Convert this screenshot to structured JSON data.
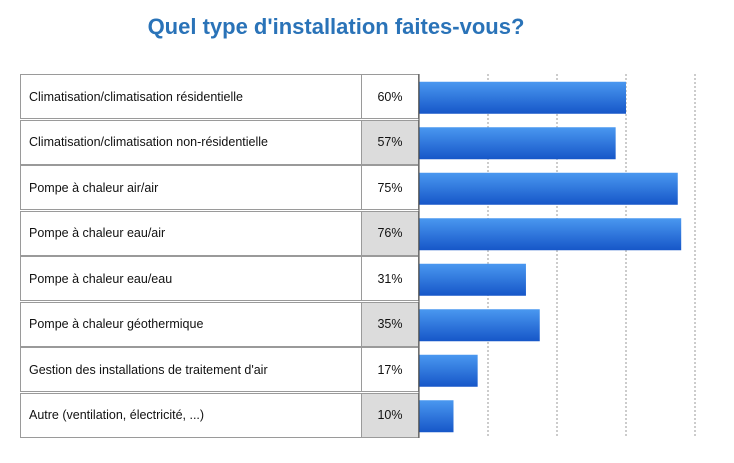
{
  "title": "Quel type d'installation faites-vous?",
  "chart_data": {
    "type": "bar",
    "orientation": "horizontal",
    "title": "Quel type d'installation faites-vous?",
    "categories": [
      "Climatisation/climatisation résidentielle",
      "Climatisation/climatisation non-résidentielle",
      "Pompe à chaleur air/air",
      "Pompe à chaleur eau/air",
      "Pompe à chaleur eau/eau",
      "Pompe à chaleur géothermique",
      "Gestion des installations de traitement d'air",
      "Autre (ventilation, électricité, ...)"
    ],
    "values": [
      60,
      57,
      75,
      76,
      31,
      35,
      17,
      10
    ],
    "value_labels": [
      "60%",
      "57%",
      "75%",
      "76%",
      "31%",
      "35%",
      "17%",
      "10%"
    ],
    "xlim": [
      0,
      80
    ],
    "grid": "vertical dotted lines",
    "bar_color_top": "#4a98f0",
    "bar_color_bottom": "#1656c8"
  }
}
